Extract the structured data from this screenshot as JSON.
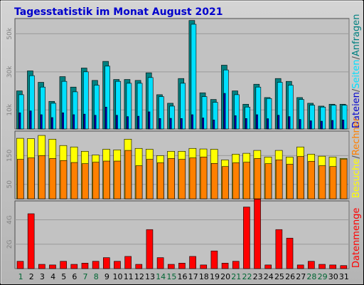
{
  "chart_data": [
    {
      "type": "bar",
      "title": "Tagesstatistik im Monat August 2021",
      "categories": [
        "1",
        "2",
        "3",
        "4",
        "5",
        "6",
        "7",
        "8",
        "9",
        "10",
        "11",
        "12",
        "13",
        "14",
        "15",
        "16",
        "17",
        "18",
        "19",
        "20",
        "21",
        "22",
        "23",
        "24",
        "25",
        "26",
        "27",
        "28",
        "29",
        "30",
        "31"
      ],
      "ytick_labels": [
        "10k",
        "30k",
        "50k"
      ],
      "ytick_values": [
        10000,
        30000,
        50000
      ],
      "ylim": [
        0,
        58000
      ],
      "legend": [
        "Anfragen",
        "Seiten",
        "Dateien"
      ],
      "series": [
        {
          "name": "Anfragen",
          "color": "#008080",
          "values": [
            20000,
            30500,
            24500,
            14500,
            27500,
            22000,
            32000,
            25500,
            35500,
            26000,
            26000,
            25500,
            29500,
            18000,
            13500,
            26500,
            57000,
            19000,
            15500,
            33500,
            20000,
            13000,
            23500,
            16500,
            26500,
            25000,
            16500,
            13500,
            12000,
            13000,
            13000
          ]
        },
        {
          "name": "Seiten",
          "color": "#00e0ff",
          "values": [
            18000,
            28000,
            22000,
            13500,
            25000,
            19500,
            30000,
            23000,
            33000,
            25000,
            24000,
            24000,
            27000,
            17000,
            12000,
            24000,
            55000,
            17000,
            14000,
            31000,
            18000,
            11500,
            22000,
            16000,
            24500,
            23000,
            15500,
            12500,
            11500,
            12500,
            12500
          ]
        },
        {
          "name": "Dateien",
          "color": "#0000cc",
          "values": [
            8500,
            9500,
            7500,
            6000,
            8500,
            7500,
            7800,
            7200,
            11500,
            7200,
            6500,
            6700,
            9000,
            5500,
            5600,
            5500,
            7500,
            5800,
            4700,
            18700,
            7000,
            5500,
            7500,
            5400,
            7200,
            6500,
            5000,
            4300,
            4100,
            4500,
            4700
          ]
        }
      ]
    },
    {
      "type": "bar",
      "ytick_labels": [
        "50",
        "150"
      ],
      "ytick_values": [
        50,
        150
      ],
      "ylim": [
        0,
        235
      ],
      "legend": [
        "Besuche",
        "Rechner"
      ],
      "series": [
        {
          "name": "Besuche",
          "color": "#ffff00",
          "values": [
            210,
            209,
            220,
            207,
            185,
            180,
            165,
            152,
            172,
            170,
            207,
            175,
            172,
            150,
            165,
            165,
            175,
            173,
            172,
            135,
            155,
            158,
            168,
            145,
            168,
            145,
            180,
            155,
            148,
            145,
            140
          ]
        },
        {
          "name": "Rechner",
          "color": "#ff8000",
          "values": [
            137,
            142,
            150,
            140,
            133,
            126,
            122,
            127,
            131,
            131,
            168,
            115,
            137,
            125,
            140,
            137,
            142,
            145,
            123,
            112,
            125,
            127,
            140,
            122,
            135,
            120,
            147,
            130,
            115,
            112,
            137
          ]
        }
      ]
    },
    {
      "type": "bar",
      "ytick_labels": [
        "2G",
        "4G"
      ],
      "ytick_values": [
        2,
        4
      ],
      "ylim": [
        0,
        5.55
      ],
      "legend": [
        "Datenmenge"
      ],
      "series": [
        {
          "name": "Datenmenge",
          "color": "#ff0000",
          "values": [
            0.6,
            4.5,
            0.35,
            0.3,
            0.6,
            0.35,
            0.45,
            0.6,
            0.9,
            0.6,
            1.0,
            0.35,
            3.2,
            0.9,
            0.35,
            0.45,
            1.0,
            0.3,
            1.45,
            0.45,
            0.6,
            5.05,
            5.7,
            0.3,
            3.2,
            2.5,
            0.3,
            0.6,
            0.35,
            0.3,
            0.25
          ]
        }
      ]
    }
  ],
  "day_label_colors": [
    "#006633",
    "#000000",
    "#000000",
    "#000000",
    "#000000",
    "#000000",
    "#006633",
    "#006633",
    "#000000",
    "#000000",
    "#000000",
    "#000000",
    "#000000",
    "#006633",
    "#006633",
    "#000000",
    "#000000",
    "#000000",
    "#000000",
    "#000000",
    "#006633",
    "#006633",
    "#000000",
    "#000000",
    "#000000",
    "#000000",
    "#000000",
    "#006633",
    "#006633",
    "#000000",
    "#000000"
  ]
}
